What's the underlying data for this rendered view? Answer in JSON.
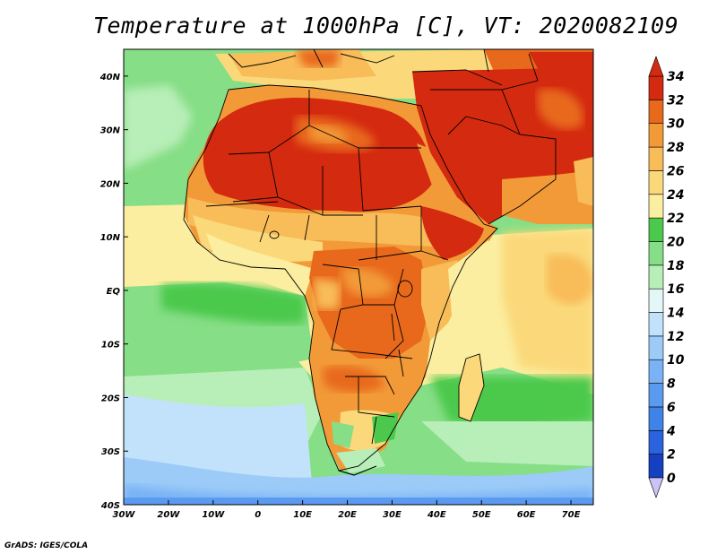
{
  "title": "Temperature at 1000hPa [C], VT: 2020082109",
  "credit": "GrADS: IGES/COLA",
  "map_data": {
    "lon_range": [
      -30,
      75
    ],
    "lat_range": [
      -40,
      45
    ],
    "lon_ticks": [
      "30W",
      "20W",
      "10W",
      "0",
      "10E",
      "20E",
      "30E",
      "40E",
      "50E",
      "60E",
      "70E"
    ],
    "lat_ticks": [
      "40N",
      "30N",
      "20N",
      "10N",
      "EQ",
      "10S",
      "20S",
      "30S",
      "40S"
    ]
  },
  "colorbar": {
    "labels": [
      "0",
      "2",
      "4",
      "6",
      "8",
      "10",
      "12",
      "14",
      "16",
      "18",
      "20",
      "22",
      "24",
      "26",
      "28",
      "30",
      "32",
      "34"
    ],
    "colors": [
      "#0b1573",
      "#1540c0",
      "#2a63dd",
      "#3f82e8",
      "#5a9af0",
      "#79b3f5",
      "#9ccbf8",
      "#c2e2fb",
      "#e4f6f8",
      "#b8eeb8",
      "#86de86",
      "#4cc94c",
      "#fbeea0",
      "#fbd97a",
      "#f8bc58",
      "#f29a38",
      "#e8691c",
      "#d42a10"
    ],
    "min_color": "#c9c3f6",
    "max_color": "#d42a10"
  }
}
